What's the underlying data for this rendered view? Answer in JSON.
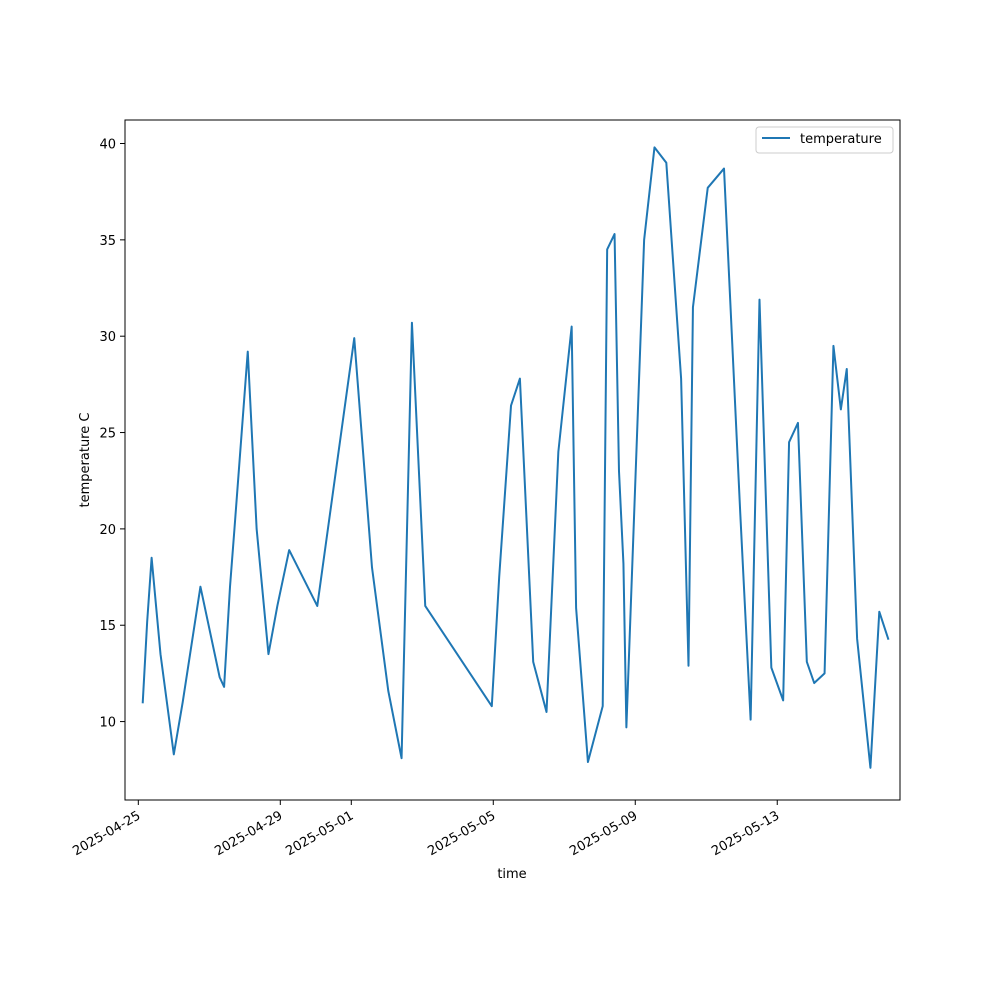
{
  "chart_data": {
    "type": "line",
    "title": "",
    "xlabel": "time",
    "ylabel": "temperature C",
    "grid": false,
    "legend_placement": "top-right",
    "line_color": "#1f77b4",
    "xlim": [
      "2025-04-24 15:00",
      "2025-05-16 11:00"
    ],
    "ylim": [
      5.93,
      41.22
    ],
    "x_ticks": [
      "2025-04-25",
      "2025-04-29",
      "2025-05-01",
      "2025-05-05",
      "2025-05-09",
      "2025-05-13"
    ],
    "y_ticks": [
      10,
      15,
      20,
      25,
      30,
      35,
      40
    ],
    "series": [
      {
        "name": "temperature",
        "x": [
          "2025-04-25 03:00",
          "2025-04-25 06:00",
          "2025-04-25 09:00",
          "2025-04-25 15:00",
          "2025-04-26 00:00",
          "2025-04-26 06:00",
          "2025-04-26 18:00",
          "2025-04-27 07:00",
          "2025-04-27 10:00",
          "2025-04-27 14:00",
          "2025-04-27 17:00",
          "2025-04-28 02:00",
          "2025-04-28 08:00",
          "2025-04-28 16:00",
          "2025-04-28 22:00",
          "2025-04-29 06:00",
          "2025-04-30 01:00",
          "2025-05-01 02:00",
          "2025-05-01 14:00",
          "2025-05-02 01:00",
          "2025-05-02 10:00",
          "2025-05-02 17:00",
          "2025-05-03 02:00",
          "2025-05-04 23:00",
          "2025-05-05 04:00",
          "2025-05-05 12:00",
          "2025-05-05 18:00",
          "2025-05-06 03:00",
          "2025-05-06 12:00",
          "2025-05-06 20:00",
          "2025-05-07 05:00",
          "2025-05-07 08:00",
          "2025-05-07 16:00",
          "2025-05-08 02:00",
          "2025-05-08 05:00",
          "2025-05-08 10:00",
          "2025-05-08 13:00",
          "2025-05-08 16:00",
          "2025-05-08 18:00",
          "2025-05-09 06:00",
          "2025-05-09 13:00",
          "2025-05-09 21:00",
          "2025-05-10 07:00",
          "2025-05-10 12:00",
          "2025-05-10 15:00",
          "2025-05-11 01:00",
          "2025-05-11 12:00",
          "2025-05-11 23:00",
          "2025-05-12 06:00",
          "2025-05-12 12:00",
          "2025-05-12 20:00",
          "2025-05-13 04:00",
          "2025-05-13 08:00",
          "2025-05-13 14:00",
          "2025-05-13 20:00",
          "2025-05-14 01:00",
          "2025-05-14 08:00",
          "2025-05-14 14:00",
          "2025-05-14 19:00",
          "2025-05-14 23:00",
          "2025-05-15 06:00",
          "2025-05-15 15:00",
          "2025-05-15 21:00",
          "2025-05-16 03:00"
        ],
        "values": [
          11.0,
          15.2,
          18.5,
          13.5,
          8.3,
          11.0,
          17.0,
          12.3,
          11.8,
          17.0,
          20.0,
          29.2,
          20.0,
          13.5,
          16.0,
          18.9,
          16.0,
          29.9,
          18.0,
          11.6,
          8.1,
          30.7,
          16.0,
          10.8,
          17.5,
          26.4,
          27.8,
          13.1,
          10.5,
          24.0,
          30.5,
          15.9,
          7.9,
          10.8,
          34.5,
          35.3,
          23.0,
          18.2,
          9.7,
          35.0,
          39.8,
          39.0,
          27.8,
          12.9,
          31.5,
          37.7,
          38.7,
          20.8,
          10.1,
          31.9,
          12.8,
          11.1,
          24.5,
          25.5,
          13.1,
          12.0,
          12.5,
          29.5,
          26.2,
          28.3,
          14.3,
          7.6,
          15.7,
          14.3
        ]
      }
    ]
  }
}
